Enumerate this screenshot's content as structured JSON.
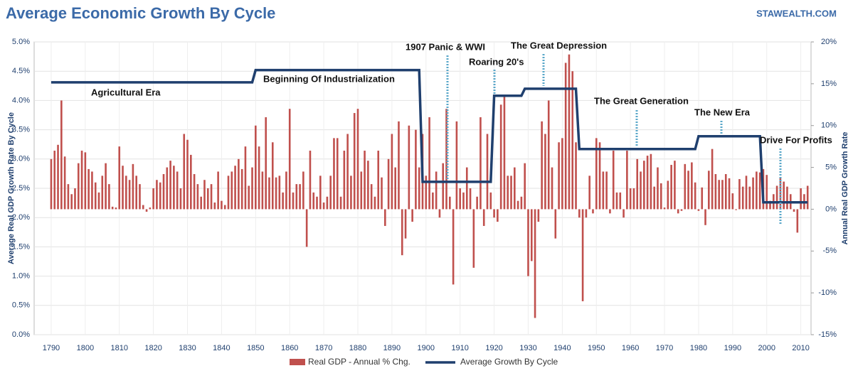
{
  "chart_data": {
    "type": "bar-line",
    "title": "Average Economic Growth By Cycle",
    "source": "STAWEALTH.COM",
    "y_label": "Average Real GDP Growth Rate By Cycle",
    "y2_label": "Annual Real GDP Growth Rate",
    "xlim": [
      1785,
      2013
    ],
    "xticks": [
      1790,
      1800,
      1810,
      1820,
      1830,
      1840,
      1850,
      1860,
      1870,
      1880,
      1890,
      1900,
      1910,
      1920,
      1930,
      1940,
      1950,
      1960,
      1970,
      1980,
      1990,
      2000,
      2010
    ],
    "ylim": [
      0,
      5
    ],
    "yticks": [
      {
        "value": 0,
        "label": "0.0%"
      },
      {
        "value": 0.5,
        "label": "0.5%"
      },
      {
        "value": 1,
        "label": "1.0%"
      },
      {
        "value": 1.5,
        "label": "1.5%"
      },
      {
        "value": 2,
        "label": "2.0%"
      },
      {
        "value": 2.5,
        "label": "2.5%"
      },
      {
        "value": 3,
        "label": "3.0%"
      },
      {
        "value": 3.5,
        "label": "3.5%"
      },
      {
        "value": 4,
        "label": "4.0%"
      },
      {
        "value": 4.5,
        "label": "4.5%"
      },
      {
        "value": 5,
        "label": "5.0%"
      }
    ],
    "y2lim": [
      -15,
      20
    ],
    "y2ticks": [
      {
        "value": -15,
        "label": "-15%"
      },
      {
        "value": -10,
        "label": "-10%"
      },
      {
        "value": -5,
        "label": "-5%"
      },
      {
        "value": 0,
        "label": "0%"
      },
      {
        "value": 5,
        "label": "5%"
      },
      {
        "value": 10,
        "label": "10%"
      },
      {
        "value": 15,
        "label": "15%"
      },
      {
        "value": 20,
        "label": "20%"
      }
    ],
    "grid": true,
    "bars": {
      "name": "Real GDP - Annual % Chg.",
      "color": "#c0504d",
      "axis": "y2",
      "x_start": 1790,
      "values": [
        6.0,
        7.0,
        7.7,
        13.0,
        6.3,
        3.0,
        1.8,
        2.5,
        5.5,
        7.0,
        6.8,
        4.8,
        4.5,
        3.2,
        2.0,
        4.0,
        5.5,
        3.0,
        0.3,
        0.2,
        7.5,
        5.2,
        4.0,
        3.5,
        5.4,
        4.0,
        3.0,
        0.5,
        -0.3,
        0.2,
        2.5,
        3.5,
        3.2,
        4.2,
        5.0,
        5.8,
        5.2,
        4.5,
        2.5,
        9.0,
        8.3,
        6.5,
        4.2,
        3.0,
        1.5,
        3.5,
        2.5,
        3.0,
        0.8,
        4.5,
        1.0,
        0.5,
        4.0,
        4.5,
        5.2,
        6.0,
        4.8,
        7.5,
        2.8,
        5.0,
        10.0,
        7.5,
        4.5,
        11.0,
        3.8,
        8.0,
        3.8,
        4.0,
        2.0,
        4.5,
        12.0,
        2.0,
        3.0,
        3.0,
        4.5,
        -4.5,
        7.0,
        2.0,
        1.5,
        4.0,
        0.8,
        1.5,
        4.0,
        8.5,
        8.5,
        1.5,
        7.0,
        9.0,
        4.0,
        11.5,
        12.0,
        4.5,
        7.0,
        5.8,
        3.0,
        1.5,
        7.0,
        3.8,
        -2.0,
        6.0,
        9.0,
        5.0,
        10.5,
        -5.5,
        -3.5,
        10.0,
        -1.5,
        9.5,
        5.0,
        9.0,
        4.0,
        11.0,
        2.0,
        4.5,
        -1.0,
        5.5,
        12.0,
        1.5,
        -9.0,
        10.5,
        2.5,
        2.0,
        5.0,
        2.5,
        -7.0,
        1.5,
        11.0,
        -2.0,
        9.0,
        2.0,
        -1.0,
        -1.5,
        12.5,
        13.5,
        4.0,
        4.0,
        5.0,
        1.0,
        1.5,
        5.5,
        -8.0,
        -6.2,
        -13.0,
        -1.5,
        10.5,
        9.0,
        13.0,
        5.0,
        -3.5,
        8.0,
        8.5,
        17.5,
        18.5,
        16.5,
        8.0,
        -1.0,
        -11.0,
        -1.0,
        4.0,
        -0.5,
        8.5,
        8.0,
        4.5,
        4.5,
        -0.5,
        7.0,
        2.0,
        2.0,
        -1.0,
        7.0,
        2.5,
        2.5,
        6.0,
        4.5,
        5.8,
        6.4,
        6.6,
        2.7,
        5.0,
        3.1,
        0.2,
        3.4,
        5.3,
        5.8,
        -0.5,
        -0.2,
        5.4,
        4.6,
        5.6,
        3.2,
        -0.2,
        2.6,
        -1.9,
        4.6,
        7.2,
        4.2,
        3.5,
        3.5,
        4.2,
        3.7,
        1.9,
        -0.1,
        3.6,
        2.7,
        4.0,
        2.7,
        3.8,
        4.5,
        4.4,
        4.8,
        4.1,
        1.0,
        1.8,
        2.8,
        3.8,
        3.3,
        2.7,
        1.8,
        -0.3,
        -2.8,
        2.5,
        1.8,
        2.8
      ]
    },
    "line": {
      "name": "Average Growth By Cycle",
      "color": "#1f3f6e",
      "x": [
        1790,
        1849,
        1850,
        1898,
        1899,
        1919,
        1920,
        1928,
        1929,
        1944,
        1945,
        1979,
        1980,
        1998,
        1999,
        2012
      ],
      "values": [
        4.31,
        4.31,
        4.52,
        4.52,
        2.61,
        2.61,
        4.08,
        4.08,
        4.2,
        4.2,
        3.17,
        3.17,
        3.39,
        3.39,
        2.26,
        2.26
      ]
    },
    "annotations": [
      "Agricultural Era",
      "Beginning Of Industrialization",
      "1907 Panic & WWI",
      "Roaring 20's",
      "The Great Depression",
      "The Great Generation",
      "The New Era",
      "Drive For Profits"
    ]
  }
}
